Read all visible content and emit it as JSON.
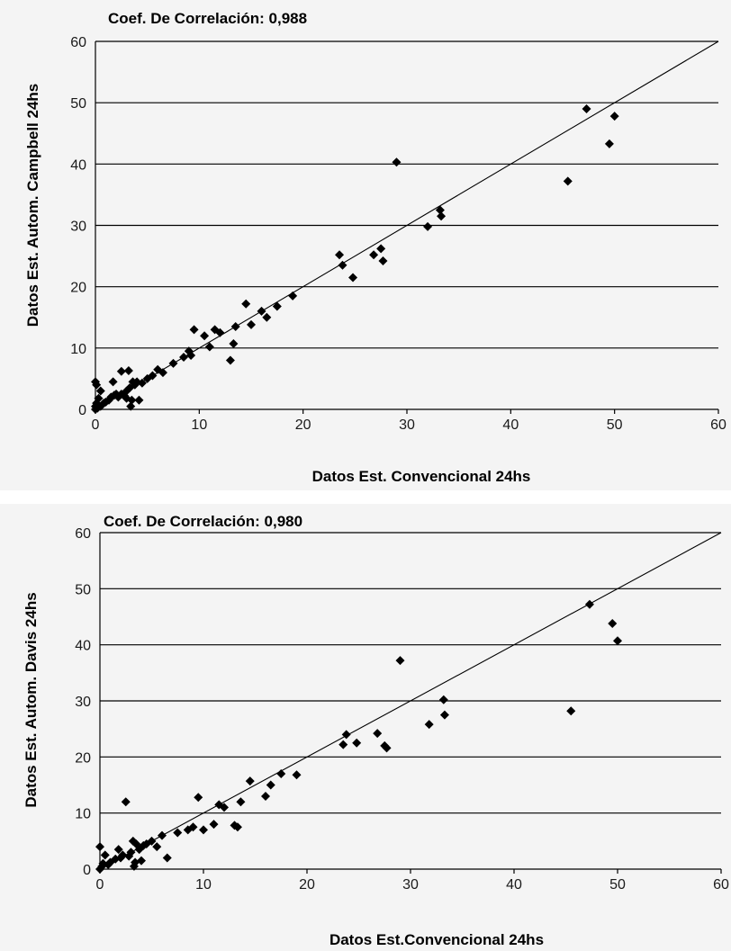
{
  "chart_data": [
    {
      "type": "scatter",
      "title": "Coef. De Correlación: 0,988",
      "xlabel": "Datos Est. Convencional 24hs",
      "ylabel": "Datos Est. Autom. Campbell 24hs",
      "xlim": [
        0,
        60
      ],
      "ylim": [
        0,
        60
      ],
      "xticks": [
        "0",
        "10",
        "20",
        "30",
        "40",
        "50",
        "60"
      ],
      "yticks": [
        "0",
        "10",
        "20",
        "30",
        "40",
        "50",
        "60"
      ],
      "grid": "horizontal",
      "reference_line": [
        [
          0,
          0
        ],
        [
          60,
          60
        ]
      ],
      "marker": "diamond",
      "points": [
        [
          0,
          0
        ],
        [
          0,
          0.5
        ],
        [
          0.1,
          1
        ],
        [
          0.2,
          0.2
        ],
        [
          0.3,
          1.8
        ],
        [
          0,
          4.5
        ],
        [
          0.1,
          4
        ],
        [
          0.5,
          3
        ],
        [
          0.5,
          0.5
        ],
        [
          0.8,
          1
        ],
        [
          1,
          1.2
        ],
        [
          1.3,
          1.5
        ],
        [
          1.5,
          2
        ],
        [
          1.8,
          2.3
        ],
        [
          2,
          2.5
        ],
        [
          1.7,
          4.5
        ],
        [
          2.2,
          2
        ],
        [
          2.5,
          2.5
        ],
        [
          2.8,
          2.2
        ],
        [
          2.5,
          6.2
        ],
        [
          3,
          3
        ],
        [
          3.2,
          6.3
        ],
        [
          3.3,
          3.5
        ],
        [
          3.5,
          1.5
        ],
        [
          3.8,
          4
        ],
        [
          3.4,
          0.5
        ],
        [
          3,
          1.8
        ],
        [
          3.6,
          4.5
        ],
        [
          4,
          4.5
        ],
        [
          4.2,
          1.5
        ],
        [
          4.5,
          4.3
        ],
        [
          5,
          5
        ],
        [
          5.5,
          5.5
        ],
        [
          6,
          6.5
        ],
        [
          6.5,
          6
        ],
        [
          7.5,
          7.5
        ],
        [
          8.5,
          8.5
        ],
        [
          9,
          9.5
        ],
        [
          9.2,
          8.8
        ],
        [
          9.5,
          13
        ],
        [
          10.5,
          12
        ],
        [
          11,
          10.2
        ],
        [
          11.5,
          13
        ],
        [
          12,
          12.5
        ],
        [
          13,
          8
        ],
        [
          13.3,
          10.7
        ],
        [
          13.5,
          13.5
        ],
        [
          14.5,
          17.2
        ],
        [
          15,
          13.8
        ],
        [
          16,
          16
        ],
        [
          16.5,
          15
        ],
        [
          17.5,
          16.8
        ],
        [
          19,
          18.5
        ],
        [
          23.5,
          25.2
        ],
        [
          23.8,
          23.5
        ],
        [
          24.8,
          21.5
        ],
        [
          26.8,
          25.2
        ],
        [
          27.5,
          26.2
        ],
        [
          27.7,
          24.2
        ],
        [
          29,
          40.3
        ],
        [
          32,
          29.8
        ],
        [
          33.2,
          32.5
        ],
        [
          33.3,
          31.5
        ],
        [
          45.5,
          37.2
        ],
        [
          47.3,
          49
        ],
        [
          49.5,
          43.3
        ],
        [
          50,
          47.8
        ]
      ]
    },
    {
      "type": "scatter",
      "title": "Coef. De Correlación: 0,980",
      "xlabel": "Datos Est.Convencional 24hs",
      "ylabel": "Datos Est. Autom. Davis 24hs",
      "xlim": [
        0,
        60
      ],
      "ylim": [
        0,
        60
      ],
      "xticks": [
        "0",
        "10",
        "20",
        "30",
        "40",
        "50",
        "60"
      ],
      "yticks": [
        "0",
        "10",
        "20",
        "30",
        "40",
        "50",
        "60"
      ],
      "grid": "horizontal",
      "reference_line": [
        [
          0,
          0
        ],
        [
          60,
          60
        ]
      ],
      "marker": "diamond",
      "points": [
        [
          0,
          0
        ],
        [
          0,
          4
        ],
        [
          0.2,
          0.5
        ],
        [
          0.3,
          1
        ],
        [
          0.5,
          2.5
        ],
        [
          0.8,
          0.8
        ],
        [
          1,
          1.2
        ],
        [
          1.5,
          1.8
        ],
        [
          1.8,
          3.5
        ],
        [
          2,
          2
        ],
        [
          2.2,
          2.5
        ],
        [
          2.5,
          12
        ],
        [
          2.8,
          2.3
        ],
        [
          3,
          3
        ],
        [
          3.2,
          5
        ],
        [
          3.4,
          1.2
        ],
        [
          3.3,
          0.5
        ],
        [
          3.5,
          4.5
        ],
        [
          3.8,
          3.5
        ],
        [
          4,
          1.5
        ],
        [
          4.2,
          4.2
        ],
        [
          4.5,
          4.5
        ],
        [
          5,
          5
        ],
        [
          5.5,
          4
        ],
        [
          6,
          6
        ],
        [
          6.5,
          2
        ],
        [
          7.5,
          6.5
        ],
        [
          8.5,
          7
        ],
        [
          9,
          7.5
        ],
        [
          9.5,
          12.8
        ],
        [
          10,
          7
        ],
        [
          11,
          8
        ],
        [
          11.5,
          11.5
        ],
        [
          12,
          11
        ],
        [
          13,
          7.8
        ],
        [
          13.3,
          7.5
        ],
        [
          13.6,
          12
        ],
        [
          14.5,
          15.7
        ],
        [
          16,
          13
        ],
        [
          16.5,
          15
        ],
        [
          17.5,
          17
        ],
        [
          19,
          16.8
        ],
        [
          23.5,
          22.2
        ],
        [
          23.8,
          24
        ],
        [
          24.8,
          22.5
        ],
        [
          26.8,
          24.2
        ],
        [
          27.5,
          22
        ],
        [
          27.7,
          21.6
        ],
        [
          29,
          37.2
        ],
        [
          31.8,
          25.8
        ],
        [
          33.2,
          30.2
        ],
        [
          33.3,
          27.5
        ],
        [
          45.5,
          28.2
        ],
        [
          47.3,
          47.2
        ],
        [
          49.5,
          43.8
        ],
        [
          50,
          40.7
        ]
      ]
    }
  ],
  "colors": {
    "marker": "#000000",
    "grid": "#000000",
    "panel_background": "#f4f4f4"
  }
}
